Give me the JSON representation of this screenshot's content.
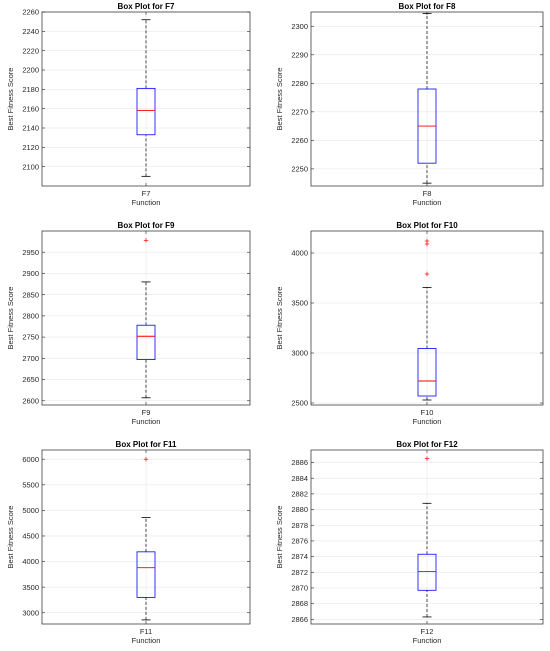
{
  "chart_data": [
    {
      "type": "box",
      "title": "Box Plot for F7",
      "xlabel": "Function",
      "ylabel": "Best Fitness Score",
      "categories": [
        "F7"
      ],
      "ylim": [
        2080,
        2260
      ],
      "yticks": [
        2100,
        2120,
        2140,
        2160,
        2180,
        2200,
        2220,
        2240,
        2260
      ],
      "grid": true,
      "box": {
        "whisker_low": 2090,
        "q1": 2133,
        "median": 2158,
        "q3": 2181,
        "whisker_high": 2252
      },
      "outliers": []
    },
    {
      "type": "box",
      "title": "Box Plot for F8",
      "xlabel": "Function",
      "ylabel": "Best Fitness Score",
      "categories": [
        "F8"
      ],
      "ylim": [
        2244,
        2305
      ],
      "yticks": [
        2250,
        2260,
        2270,
        2280,
        2290,
        2300
      ],
      "grid": true,
      "box": {
        "whisker_low": 2245,
        "q1": 2252,
        "median": 2265,
        "q3": 2278,
        "whisker_high": 2304.5
      },
      "outliers": []
    },
    {
      "type": "box",
      "title": "Box Plot for F9",
      "xlabel": "Function",
      "ylabel": "Best Fitness Score",
      "categories": [
        "F9"
      ],
      "ylim": [
        2590,
        3000
      ],
      "yticks": [
        2600,
        2650,
        2700,
        2750,
        2800,
        2850,
        2900,
        2950
      ],
      "grid": true,
      "box": {
        "whisker_low": 2607,
        "q1": 2697,
        "median": 2752,
        "q3": 2778,
        "whisker_high": 2880
      },
      "outliers": [
        2978
      ]
    },
    {
      "type": "box",
      "title": "Box Plot for F10",
      "xlabel": "Function",
      "ylabel": "Best Fitness Score",
      "categories": [
        "F10"
      ],
      "ylim": [
        2480,
        4220
      ],
      "yticks": [
        2500,
        3000,
        3500,
        4000
      ],
      "grid": true,
      "box": {
        "whisker_low": 2530,
        "q1": 2570,
        "median": 2720,
        "q3": 3045,
        "whisker_high": 3655
      },
      "outliers": [
        3790,
        4090,
        4120
      ]
    },
    {
      "type": "box",
      "title": "Box Plot for F11",
      "xlabel": "Function",
      "ylabel": "Best Fitness Score",
      "categories": [
        "F11"
      ],
      "ylim": [
        2780,
        6180
      ],
      "yticks": [
        3000,
        3500,
        4000,
        4500,
        5000,
        5500,
        6000
      ],
      "grid": true,
      "box": {
        "whisker_low": 2860,
        "q1": 3300,
        "median": 3880,
        "q3": 4190,
        "whisker_high": 4860
      },
      "outliers": [
        6000
      ]
    },
    {
      "type": "box",
      "title": "Box Plot for F12",
      "xlabel": "Function",
      "ylabel": "Best Fitness Score",
      "categories": [
        "F12"
      ],
      "ylim": [
        2865.4,
        2887.6
      ],
      "yticks": [
        2866,
        2868,
        2870,
        2872,
        2874,
        2876,
        2878,
        2880,
        2882,
        2884,
        2886
      ],
      "grid": true,
      "box": {
        "whisker_low": 2866.3,
        "q1": 2869.7,
        "median": 2872.1,
        "q3": 2874.3,
        "whisker_high": 2880.8
      },
      "outliers": [
        2886.5
      ]
    }
  ],
  "colors": {
    "box": "#0000ff",
    "median": "#ff0000",
    "whisker": "#000000",
    "outlier": "#ff0000",
    "grid": "#e6e6e6",
    "axes": "#262626"
  }
}
